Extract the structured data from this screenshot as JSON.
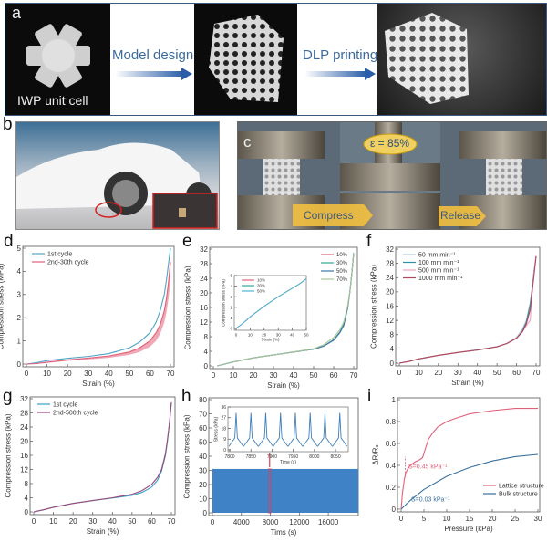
{
  "panel_a": {
    "label": "a",
    "unit_cell_caption": "IWP unit cell",
    "step1": "Model design",
    "step2": "DLP printing"
  },
  "panel_b": {
    "label": "b"
  },
  "panel_c": {
    "label": "c",
    "strain_badge": "ε = 85%",
    "compress": "Compress",
    "release": "Release"
  },
  "colors": {
    "blue": "#4fa3c7",
    "red": "#e0607a",
    "fill_blue": "#3f83c6",
    "bulk": "#3a6f9a"
  },
  "chart_data": [
    {
      "id": "d",
      "label": "d",
      "type": "line",
      "xlabel": "Strain (%)",
      "ylabel": "Compression stress (MPa)",
      "xlim": [
        0,
        70
      ],
      "ylim": [
        0,
        5
      ],
      "xticks": [
        0,
        10,
        20,
        30,
        40,
        50,
        60,
        70
      ],
      "yticks": [
        0,
        1,
        2,
        3,
        4,
        5
      ],
      "legend": "top-left",
      "series": [
        {
          "name": "1st cycle",
          "color": "#4fa3c7",
          "x": [
            0,
            5,
            10,
            20,
            30,
            40,
            50,
            55,
            60,
            63,
            65,
            67,
            68,
            69,
            70
          ],
          "y": [
            0,
            0.06,
            0.15,
            0.25,
            0.33,
            0.45,
            0.7,
            0.95,
            1.35,
            1.8,
            2.3,
            3.0,
            3.6,
            4.3,
            5.0
          ]
        },
        {
          "name": "2nd-30th cycle",
          "color": "#e0607a",
          "band": true,
          "x": [
            0,
            5,
            10,
            20,
            30,
            40,
            50,
            55,
            60,
            63,
            65,
            67,
            68,
            69,
            70
          ],
          "y": [
            0,
            0.02,
            0.08,
            0.18,
            0.26,
            0.35,
            0.52,
            0.7,
            1.0,
            1.35,
            1.7,
            2.3,
            2.8,
            3.5,
            4.4
          ],
          "y_low": [
            0,
            0.01,
            0.05,
            0.14,
            0.2,
            0.27,
            0.4,
            0.52,
            0.75,
            1.0,
            1.3,
            1.8,
            2.2,
            2.8,
            3.6
          ]
        }
      ]
    },
    {
      "id": "e",
      "label": "e",
      "type": "line",
      "xlabel": "Strain (%)",
      "ylabel": "Compression stress (kPa)",
      "xlim": [
        0,
        70
      ],
      "ylim": [
        0,
        32
      ],
      "xticks": [
        0,
        10,
        20,
        30,
        40,
        50,
        60,
        70
      ],
      "yticks": [
        0,
        4,
        8,
        12,
        16,
        20,
        24,
        28,
        32
      ],
      "legend": "top-right",
      "series": [
        {
          "name": "10%",
          "color": "#e0607a",
          "x": [
            2,
            5,
            10,
            20,
            30,
            40,
            50,
            55,
            60,
            63,
            65,
            67,
            68,
            69,
            70
          ],
          "y": [
            0,
            0.4,
            1.1,
            2.2,
            3.0,
            3.8,
            4.6,
            5.4,
            7.0,
            9.0,
            11,
            16,
            20,
            25,
            31
          ]
        },
        {
          "name": "30%",
          "color": "#3aa39a",
          "x": [
            2,
            5,
            10,
            20,
            30,
            40,
            50,
            55,
            60,
            63,
            65,
            67,
            68,
            69,
            70
          ],
          "y": [
            0,
            0.4,
            1.1,
            2.2,
            3.0,
            3.8,
            4.6,
            5.4,
            7.0,
            9.0,
            11,
            16,
            20,
            25,
            31
          ]
        },
        {
          "name": "50%",
          "color": "#3b78a8",
          "x": [
            2,
            5,
            10,
            20,
            30,
            40,
            50,
            55,
            60,
            63,
            65,
            67,
            68,
            69,
            70
          ],
          "y": [
            0,
            0.4,
            1.1,
            2.2,
            3.0,
            3.8,
            4.6,
            5.4,
            7.2,
            9.2,
            11.3,
            16,
            20,
            25,
            31
          ]
        },
        {
          "name": "70%",
          "color": "#a7c79a",
          "x": [
            2,
            5,
            10,
            20,
            30,
            40,
            50,
            55,
            60,
            63,
            65,
            67,
            68,
            69,
            70
          ],
          "y": [
            0,
            0.4,
            1.1,
            2.2,
            3.0,
            3.8,
            4.7,
            5.8,
            7.8,
            9.8,
            12,
            16.5,
            20,
            25,
            31
          ]
        }
      ],
      "inset": {
        "xlabel": "Strain (%)",
        "ylabel": "Compression stress (kPa)",
        "xlim": [
          0,
          50
        ],
        "ylim": [
          0,
          5
        ],
        "xticks": [
          0,
          10,
          20,
          30,
          40,
          50
        ],
        "yticks": [
          0,
          1,
          2,
          3,
          4,
          5
        ],
        "series": [
          {
            "name": "10%",
            "color": "#e0607a",
            "x": [
              0,
              5,
              10,
              20,
              30,
              40,
              45,
              50
            ],
            "y": [
              0,
              0.5,
              1.1,
              2.1,
              3.0,
              3.8,
              4.2,
              4.7
            ]
          },
          {
            "name": "30%",
            "color": "#3aa39a",
            "x": [
              0,
              5,
              10,
              20,
              30,
              40,
              45,
              50
            ],
            "y": [
              0,
              0.5,
              1.1,
              2.1,
              3.0,
              3.8,
              4.2,
              4.7
            ]
          },
          {
            "name": "50%",
            "color": "#4fb3d9",
            "x": [
              0,
              5,
              10,
              20,
              30,
              40,
              45,
              50
            ],
            "y": [
              0,
              0.5,
              1.1,
              2.1,
              3.0,
              3.8,
              4.2,
              4.7
            ]
          }
        ]
      }
    },
    {
      "id": "f",
      "label": "f",
      "type": "line",
      "xlabel": "Strain (%)",
      "ylabel": "Compression stress (kPa)",
      "xlim": [
        0,
        70
      ],
      "ylim": [
        0,
        32
      ],
      "xticks": [
        0,
        10,
        20,
        30,
        40,
        50,
        60,
        70
      ],
      "yticks": [
        0,
        4,
        8,
        12,
        16,
        20,
        24,
        28,
        32
      ],
      "legend": "top-left",
      "series": [
        {
          "name": "50 mm min⁻¹",
          "color": "#b8c4d8",
          "x": [
            0,
            5,
            10,
            20,
            30,
            40,
            50,
            55,
            60,
            63,
            65,
            67,
            68,
            69,
            70
          ],
          "y": [
            0,
            0.5,
            1.2,
            2.2,
            3.0,
            3.7,
            4.6,
            5.5,
            7.2,
            9.5,
            12,
            17,
            21,
            26,
            30
          ]
        },
        {
          "name": "100 mm min⁻¹",
          "color": "#2f8fa8",
          "x": [
            0,
            5,
            10,
            20,
            30,
            40,
            50,
            55,
            60,
            63,
            65,
            67,
            68,
            69,
            70
          ],
          "y": [
            0,
            0.5,
            1.2,
            2.2,
            3.0,
            3.7,
            4.6,
            5.5,
            7.0,
            9.0,
            11.5,
            16.5,
            21,
            26,
            30
          ]
        },
        {
          "name": "500 mm min⁻¹",
          "color": "#f0a5b5",
          "x": [
            0,
            5,
            10,
            20,
            30,
            40,
            50,
            55,
            60,
            63,
            65,
            67,
            68,
            69,
            70
          ],
          "y": [
            0,
            0.5,
            1.2,
            2.2,
            3.0,
            3.7,
            4.6,
            5.5,
            7.0,
            8.8,
            10.5,
            12,
            20,
            26,
            30
          ]
        },
        {
          "name": "1000 mm min⁻¹",
          "color": "#b0485e",
          "x": [
            0,
            5,
            10,
            20,
            30,
            40,
            50,
            55,
            60,
            63,
            65,
            67,
            68,
            69,
            70
          ],
          "y": [
            0,
            0.5,
            1.2,
            2.2,
            3.0,
            3.7,
            4.6,
            5.5,
            7.0,
            8.8,
            11,
            15,
            20,
            25,
            30
          ]
        }
      ]
    },
    {
      "id": "g",
      "label": "g",
      "type": "line",
      "xlabel": "Strain (%)",
      "ylabel": "Compression stress (kPa)",
      "xlim": [
        0,
        70
      ],
      "ylim": [
        0,
        32
      ],
      "xticks": [
        0,
        10,
        20,
        30,
        40,
        50,
        60,
        70
      ],
      "yticks": [
        0,
        4,
        8,
        12,
        16,
        20,
        24,
        28,
        32
      ],
      "legend": "top-left",
      "series": [
        {
          "name": "1st cycle",
          "color": "#3aa0c8",
          "x": [
            0,
            5,
            10,
            20,
            30,
            40,
            50,
            55,
            60,
            63,
            65,
            67,
            68,
            69,
            70
          ],
          "y": [
            0,
            0.6,
            1.3,
            2.4,
            3.2,
            3.9,
            4.7,
            5.5,
            7.0,
            9.0,
            11.5,
            16,
            20,
            25,
            31
          ]
        },
        {
          "name": "2nd-500th cycle",
          "color": "#9a4a7a",
          "x": [
            0,
            5,
            10,
            20,
            30,
            40,
            50,
            55,
            60,
            63,
            65,
            67,
            68,
            69,
            70
          ],
          "y": [
            0,
            0.6,
            1.3,
            2.4,
            3.2,
            4.0,
            5.0,
            6.0,
            7.8,
            9.8,
            12,
            16.5,
            20.5,
            25,
            31
          ]
        }
      ]
    },
    {
      "id": "h",
      "label": "h",
      "type": "area",
      "xlabel": "Tims (s)",
      "ylabel": "Compression stress (kPa)",
      "xlim": [
        0,
        17500
      ],
      "ylim": [
        0,
        80
      ],
      "xticks": [
        0,
        4000,
        8000,
        12000,
        16000
      ],
      "yticks": [
        0,
        10,
        20,
        30,
        40,
        50,
        60,
        70,
        80
      ],
      "series": [
        {
          "name": "cyclic stress",
          "color": "#3f83c6",
          "x": [
            0,
            17500
          ],
          "y_max": 31,
          "y_min": 0
        }
      ],
      "highlight_time": 7900,
      "inset": {
        "xlabel": "Time (s)",
        "ylabel": "Stress (kPa)",
        "xlim": [
          7800,
          8080
        ],
        "ylim": [
          0,
          36
        ],
        "xticks": [
          7800,
          7850,
          7900,
          7950,
          8000,
          8050
        ],
        "yticks": [
          0,
          9,
          18,
          27,
          36
        ],
        "peak_times": [
          7815,
          7850,
          7885,
          7920,
          7955,
          7990,
          8025,
          8060
        ],
        "peak_value": 31,
        "valley_value": 0
      }
    },
    {
      "id": "i",
      "label": "i",
      "type": "line",
      "xlabel": "Pressure (kPa)",
      "ylabel": "ΔR/R₀",
      "xlim": [
        0,
        30
      ],
      "ylim": [
        0,
        1
      ],
      "xticks": [
        0,
        5,
        10,
        15,
        20,
        25,
        30
      ],
      "yticks": [
        0,
        0.2,
        0.4,
        0.6,
        0.8,
        1
      ],
      "legend": "bottom-right",
      "series": [
        {
          "name": "Lattice structure",
          "color": "#e0607a",
          "x": [
            0,
            0.3,
            0.7,
            1,
            1.5,
            2,
            3,
            4,
            4.7,
            5.3,
            6,
            7,
            8,
            10,
            12,
            15,
            20,
            25,
            30
          ],
          "y": [
            0,
            0.15,
            0.27,
            0.33,
            0.37,
            0.4,
            0.43,
            0.45,
            0.47,
            0.55,
            0.64,
            0.7,
            0.75,
            0.8,
            0.83,
            0.87,
            0.9,
            0.92,
            0.92
          ]
        },
        {
          "name": "Bulk structure",
          "color": "#3a6f9a",
          "x": [
            0,
            2,
            5,
            10,
            15,
            20,
            25,
            30
          ],
          "y": [
            0,
            0.08,
            0.18,
            0.3,
            0.38,
            0.44,
            0.48,
            0.5
          ]
        }
      ],
      "annotations": [
        "S=0.45 kPa⁻¹",
        "S=0.03 kPa⁻¹"
      ]
    }
  ]
}
